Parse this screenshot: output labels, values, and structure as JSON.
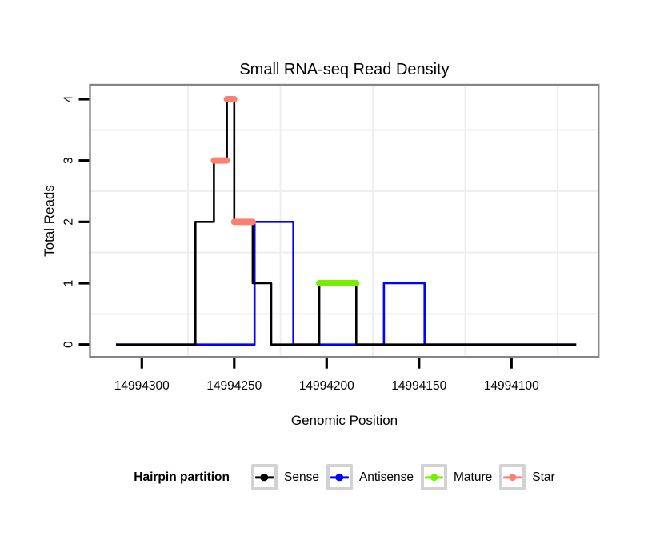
{
  "chart_data": {
    "type": "line",
    "subtype": "step-coverage",
    "title": "Small RNA-seq Read Density",
    "xlabel": "Genomic Position",
    "ylabel": "Total Reads",
    "x_axis": {
      "reversed": true,
      "range": [
        14994314,
        14994065
      ],
      "ticks": [
        14994300,
        14994250,
        14994200,
        14994150,
        14994100
      ],
      "tick_labels": [
        "14994300",
        "14994250",
        "14994200",
        "14994150",
        "14994100"
      ]
    },
    "y_axis": {
      "range": [
        0,
        4
      ],
      "ticks": [
        0,
        1,
        2,
        3,
        4
      ],
      "tick_labels": [
        "0",
        "1",
        "2",
        "3",
        "4"
      ]
    },
    "grid": {
      "x_minor_positions": [
        14994275,
        14994225,
        14994175,
        14994125,
        14994075
      ],
      "y_minor_values": [
        0.5,
        1.5,
        2.5,
        3.5
      ]
    },
    "series": [
      {
        "name": "Sense",
        "color": "#000000",
        "style": "step-line",
        "points": [
          [
            14994314,
            0
          ],
          [
            14994271,
            0
          ],
          [
            14994271,
            2
          ],
          [
            14994261,
            2
          ],
          [
            14994261,
            3
          ],
          [
            14994254,
            3
          ],
          [
            14994254,
            4
          ],
          [
            14994250,
            4
          ],
          [
            14994250,
            2
          ],
          [
            14994240,
            2
          ],
          [
            14994240,
            1
          ],
          [
            14994230,
            1
          ],
          [
            14994230,
            0
          ],
          [
            14994204,
            0
          ],
          [
            14994204,
            1
          ],
          [
            14994184,
            1
          ],
          [
            14994184,
            0
          ],
          [
            14994065,
            0
          ]
        ]
      },
      {
        "name": "Antisense",
        "color": "#0000FF",
        "style": "step-line",
        "points": [
          [
            14994314,
            0
          ],
          [
            14994239,
            0
          ],
          [
            14994239,
            2
          ],
          [
            14994218,
            2
          ],
          [
            14994218,
            0
          ],
          [
            14994169,
            0
          ],
          [
            14994169,
            1
          ],
          [
            14994147,
            1
          ],
          [
            14994147,
            0
          ],
          [
            14994065,
            0
          ]
        ]
      },
      {
        "name": "Mature",
        "color": "#76EE00",
        "style": "thick-segment",
        "segments": [
          {
            "start": 14994204,
            "end": 14994184,
            "reads": 1
          }
        ]
      },
      {
        "name": "Star",
        "color": "#FA8072",
        "style": "thick-segment",
        "segments": [
          {
            "start": 14994261,
            "end": 14994254,
            "reads": 3
          },
          {
            "start": 14994254,
            "end": 14994250,
            "reads": 4
          },
          {
            "start": 14994250,
            "end": 14994240,
            "reads": 2
          }
        ]
      }
    ]
  },
  "legend": {
    "title": "Hairpin partition",
    "items": [
      {
        "label": "Sense",
        "color": "#000000"
      },
      {
        "label": "Antisense",
        "color": "#0000FF"
      },
      {
        "label": "Mature",
        "color": "#76EE00"
      },
      {
        "label": "Star",
        "color": "#FA8072"
      }
    ]
  },
  "style": {
    "panel_border_color": "#858585",
    "grid_color": "#EEEEEE",
    "tick_color": "#000000",
    "legend_key_border": "#D2D2D2"
  }
}
